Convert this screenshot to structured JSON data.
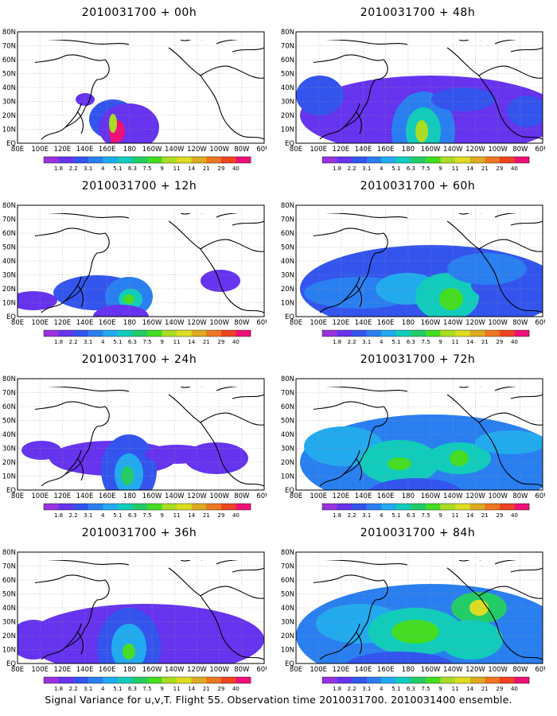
{
  "chart_data": {
    "type": "heatmap",
    "caption": "Signal Variance for u,v,T. Flight 55. Observation time 2010031700. 2010031400 ensemble.",
    "x_ticks": [
      "80E",
      "100E",
      "120E",
      "140E",
      "160E",
      "180",
      "160W",
      "140W",
      "120W",
      "100W",
      "80W",
      "60W"
    ],
    "y_ticks": [
      "80N",
      "70N",
      "60N",
      "50N",
      "40N",
      "30N",
      "20N",
      "10N",
      "EQ"
    ],
    "xlim": [
      "80E",
      "60W"
    ],
    "ylim": [
      "EQ",
      "80N"
    ],
    "colorbar": {
      "levels": [
        "1.8",
        "2.2",
        "3.1",
        "4",
        "5.1",
        "6.3",
        "7.5",
        "9",
        "11",
        "14",
        "21",
        "29",
        "40"
      ],
      "colors": [
        "#9933dd",
        "#6633ee",
        "#3355ee",
        "#2a7ff0",
        "#22aaee",
        "#11ccbb",
        "#22cc66",
        "#44dd22",
        "#aadd22",
        "#dddd22",
        "#ddaa22",
        "#ee7722",
        "#ee4422",
        "#ee1177"
      ]
    },
    "panels": [
      {
        "title": "2010031700 + 00h",
        "blobs": [
          [
            120,
            110,
            30,
            25,
            2
          ],
          [
            85,
            85,
            12,
            8,
            1
          ],
          [
            140,
            120,
            38,
            30,
            1
          ],
          [
            125,
            125,
            10,
            14,
            13
          ],
          [
            120,
            140,
            3,
            22,
            13
          ],
          [
            120,
            115,
            5,
            12,
            8
          ]
        ]
      },
      {
        "title": "2010031700 + 12h",
        "blobs": [
          [
            100,
            110,
            55,
            22,
            2
          ],
          [
            20,
            120,
            30,
            12,
            1
          ],
          [
            140,
            115,
            30,
            25,
            3
          ],
          [
            142,
            118,
            15,
            13,
            5
          ],
          [
            140,
            118,
            7,
            6,
            7
          ],
          [
            130,
            140,
            35,
            15,
            1
          ],
          [
            255,
            95,
            25,
            14,
            1
          ]
        ]
      },
      {
        "title": "2010031700 + 24h",
        "blobs": [
          [
            120,
            100,
            80,
            22,
            1
          ],
          [
            30,
            90,
            25,
            12,
            1
          ],
          [
            140,
            115,
            35,
            45,
            2
          ],
          [
            140,
            120,
            18,
            26,
            4
          ],
          [
            138,
            122,
            8,
            12,
            6
          ],
          [
            250,
            100,
            40,
            20,
            1
          ],
          [
            200,
            95,
            40,
            12,
            1
          ]
        ]
      },
      {
        "title": "2010031700 + 36h",
        "blobs": [
          [
            160,
            110,
            150,
            45,
            1
          ],
          [
            20,
            110,
            30,
            25,
            1
          ],
          [
            140,
            120,
            40,
            50,
            2
          ],
          [
            140,
            120,
            22,
            30,
            4
          ],
          [
            140,
            125,
            8,
            10,
            7
          ],
          [
            270,
            115,
            30,
            20,
            1
          ]
        ]
      },
      {
        "title": "2010031700 + 48h",
        "blobs": [
          [
            170,
            105,
            165,
            50,
            1
          ],
          [
            30,
            80,
            30,
            25,
            2
          ],
          [
            160,
            125,
            40,
            50,
            3
          ],
          [
            160,
            125,
            22,
            30,
            5
          ],
          [
            158,
            125,
            8,
            14,
            8
          ],
          [
            290,
            100,
            25,
            20,
            2
          ],
          [
            210,
            85,
            40,
            15,
            2
          ]
        ]
      },
      {
        "title": "2010031700 + 60h",
        "blobs": [
          [
            170,
            105,
            165,
            55,
            2
          ],
          [
            80,
            110,
            70,
            20,
            3
          ],
          [
            140,
            105,
            40,
            20,
            4
          ],
          [
            190,
            115,
            40,
            30,
            5
          ],
          [
            195,
            118,
            15,
            14,
            7
          ],
          [
            260,
            100,
            40,
            20,
            2
          ],
          [
            240,
            80,
            50,
            20,
            3
          ]
        ]
      },
      {
        "title": "2010031700 + 72h",
        "blobs": [
          [
            170,
            105,
            165,
            60,
            3
          ],
          [
            60,
            85,
            50,
            25,
            4
          ],
          [
            130,
            105,
            50,
            28,
            5
          ],
          [
            130,
            107,
            15,
            8,
            7
          ],
          [
            205,
            100,
            40,
            20,
            5
          ],
          [
            205,
            100,
            12,
            10,
            7
          ],
          [
            270,
            80,
            45,
            15,
            4
          ],
          [
            150,
            145,
            60,
            20,
            2
          ]
        ]
      },
      {
        "title": "2010031700 + 84h",
        "blobs": [
          [
            170,
            105,
            170,
            65,
            3
          ],
          [
            80,
            90,
            55,
            25,
            4
          ],
          [
            150,
            100,
            60,
            30,
            5
          ],
          [
            150,
            100,
            30,
            15,
            7
          ],
          [
            230,
            70,
            35,
            20,
            6
          ],
          [
            230,
            70,
            12,
            10,
            9
          ],
          [
            220,
            110,
            40,
            25,
            5
          ],
          [
            130,
            145,
            70,
            20,
            2
          ]
        ]
      }
    ]
  }
}
